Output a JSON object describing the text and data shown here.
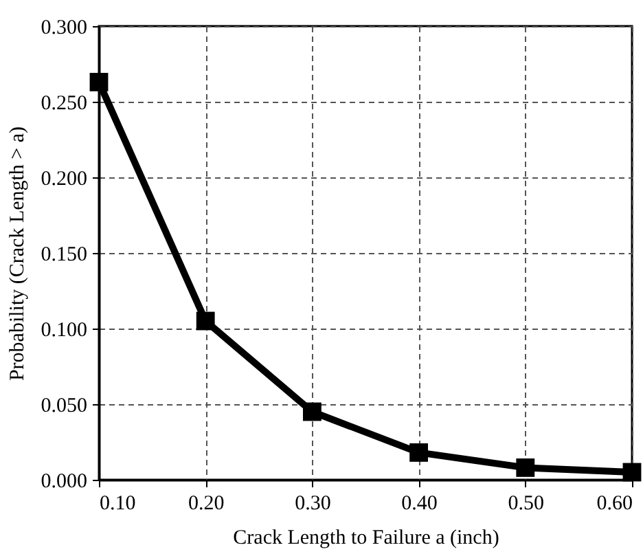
{
  "chart_data": {
    "type": "line",
    "xlabel": "Crack Length to Failure a (inch)",
    "ylabel": "Probability (Crack Length > a)",
    "x": [
      0.1,
      0.2,
      0.3,
      0.4,
      0.5,
      0.6
    ],
    "series": [
      {
        "color": "#000000",
        "values": [
          0.263,
          0.105,
          0.045,
          0.018,
          0.008,
          0.005
        ]
      }
    ],
    "xlim": [
      0.1,
      0.6
    ],
    "xticks": [
      {
        "value": 0.1,
        "label": "0.10"
      },
      {
        "value": 0.2,
        "label": "0.20"
      },
      {
        "value": 0.3,
        "label": "0.30"
      },
      {
        "value": 0.4,
        "label": "0.40"
      },
      {
        "value": 0.5,
        "label": "0.50"
      },
      {
        "value": 0.6,
        "label": "0.60"
      }
    ],
    "ylim": [
      0,
      0.3
    ],
    "yticks": [
      {
        "value": 0,
        "label": "0.000"
      },
      {
        "value": 0.05,
        "label": "0.050"
      },
      {
        "value": 0.1,
        "label": "0.100"
      },
      {
        "value": 0.15,
        "label": "0.150"
      },
      {
        "value": 0.2,
        "label": "0.200"
      },
      {
        "value": 0.25,
        "label": "0.250"
      },
      {
        "value": 0.3,
        "label": "0.300"
      }
    ],
    "grid": true,
    "marker": "square",
    "line_style": "solid",
    "legend": false
  }
}
